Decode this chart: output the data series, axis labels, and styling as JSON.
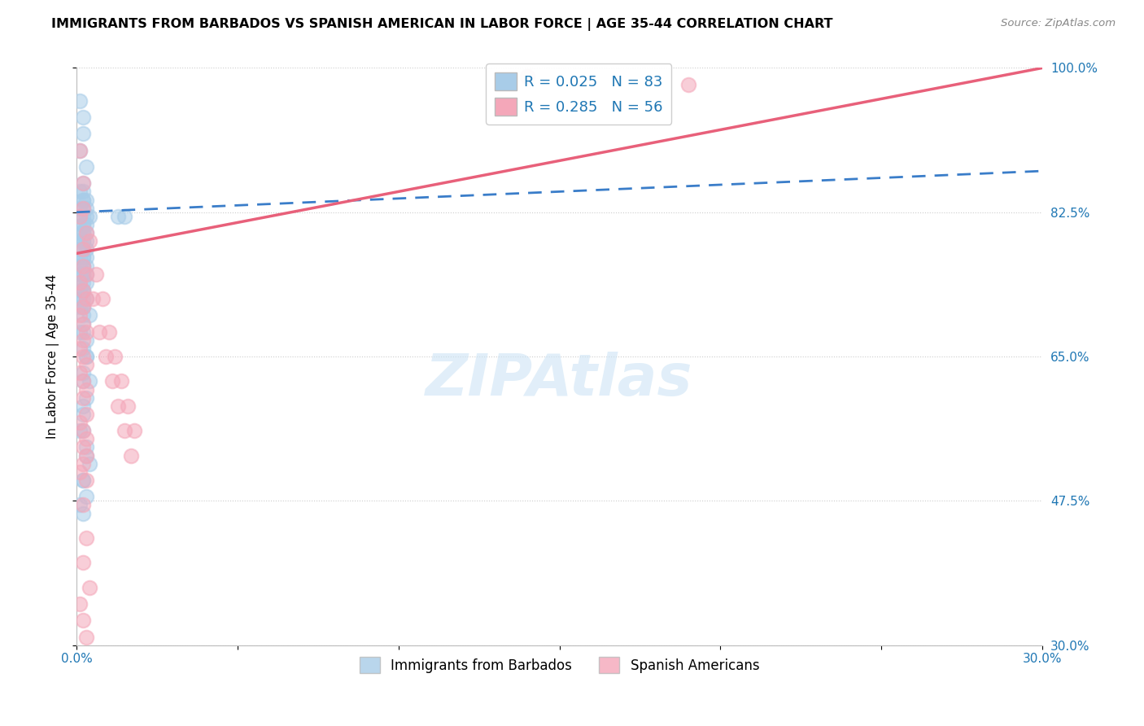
{
  "title": "IMMIGRANTS FROM BARBADOS VS SPANISH AMERICAN IN LABOR FORCE | AGE 35-44 CORRELATION CHART",
  "source": "Source: ZipAtlas.com",
  "ylabel": "In Labor Force | Age 35-44",
  "xlim": [
    0.0,
    0.3
  ],
  "ylim": [
    0.3,
    1.0
  ],
  "xticks": [
    0.0,
    0.05,
    0.1,
    0.15,
    0.2,
    0.25,
    0.3
  ],
  "xticklabels": [
    "0.0%",
    "",
    "",
    "",
    "",
    "",
    "30.0%"
  ],
  "yticks": [
    0.3,
    0.475,
    0.65,
    0.825,
    1.0
  ],
  "yticklabels": [
    "30.0%",
    "47.5%",
    "65.0%",
    "82.5%",
    "100.0%"
  ],
  "blue_color": "#a8cce8",
  "pink_color": "#f4a7b9",
  "blue_line_color": "#3a7dc9",
  "pink_line_color": "#e8607a",
  "R_blue": 0.025,
  "N_blue": 83,
  "R_pink": 0.285,
  "N_pink": 56,
  "watermark": "ZIPAtlas",
  "blue_line_x0": 0.0,
  "blue_line_y0": 0.825,
  "blue_line_x1": 0.3,
  "blue_line_y1": 0.875,
  "blue_line_style": "--",
  "pink_line_x0": 0.0,
  "pink_line_y0": 0.775,
  "pink_line_x1": 0.3,
  "pink_line_y1": 1.0,
  "pink_line_style": "-",
  "blue_scatter_x": [
    0.001,
    0.002,
    0.002,
    0.001,
    0.003,
    0.002,
    0.001,
    0.002,
    0.002,
    0.003,
    0.002,
    0.001,
    0.003,
    0.002,
    0.003,
    0.004,
    0.002,
    0.001,
    0.002,
    0.003,
    0.002,
    0.001,
    0.002,
    0.003,
    0.002,
    0.001,
    0.002,
    0.003,
    0.002,
    0.002,
    0.001,
    0.003,
    0.002,
    0.002,
    0.001,
    0.003,
    0.002,
    0.001,
    0.002,
    0.003,
    0.002,
    0.001,
    0.003,
    0.002,
    0.001,
    0.002,
    0.003,
    0.002,
    0.001,
    0.002,
    0.003,
    0.002,
    0.001,
    0.002,
    0.001,
    0.002,
    0.004,
    0.002,
    0.001,
    0.003,
    0.002,
    0.003,
    0.002,
    0.004,
    0.003,
    0.002,
    0.001,
    0.003,
    0.004,
    0.002,
    0.003,
    0.002,
    0.013,
    0.015,
    0.002,
    0.002,
    0.003,
    0.002,
    0.002,
    0.002,
    0.003,
    0.002,
    0.001
  ],
  "blue_scatter_y": [
    0.96,
    0.94,
    0.92,
    0.9,
    0.88,
    0.86,
    0.85,
    0.85,
    0.84,
    0.84,
    0.84,
    0.83,
    0.83,
    0.83,
    0.82,
    0.82,
    0.82,
    0.82,
    0.81,
    0.81,
    0.81,
    0.8,
    0.8,
    0.8,
    0.8,
    0.79,
    0.79,
    0.79,
    0.79,
    0.78,
    0.78,
    0.78,
    0.77,
    0.77,
    0.77,
    0.77,
    0.76,
    0.76,
    0.76,
    0.76,
    0.75,
    0.75,
    0.75,
    0.75,
    0.74,
    0.74,
    0.74,
    0.73,
    0.73,
    0.73,
    0.72,
    0.72,
    0.72,
    0.71,
    0.71,
    0.7,
    0.7,
    0.69,
    0.68,
    0.67,
    0.66,
    0.65,
    0.63,
    0.62,
    0.6,
    0.58,
    0.56,
    0.54,
    0.52,
    0.5,
    0.48,
    0.46,
    0.82,
    0.82,
    0.71,
    0.68,
    0.65,
    0.62,
    0.59,
    0.56,
    0.53,
    0.5,
    0.47
  ],
  "pink_scatter_x": [
    0.001,
    0.002,
    0.001,
    0.003,
    0.002,
    0.002,
    0.003,
    0.001,
    0.002,
    0.003,
    0.002,
    0.001,
    0.002,
    0.003,
    0.002,
    0.001,
    0.002,
    0.003,
    0.001,
    0.002,
    0.003,
    0.002,
    0.003,
    0.001,
    0.002,
    0.003,
    0.002,
    0.003,
    0.002,
    0.001,
    0.003,
    0.005,
    0.007,
    0.009,
    0.011,
    0.013,
    0.015,
    0.017,
    0.14,
    0.19,
    0.002,
    0.004,
    0.006,
    0.008,
    0.01,
    0.012,
    0.014,
    0.016,
    0.018,
    0.002,
    0.003,
    0.002,
    0.004,
    0.001,
    0.002,
    0.003
  ],
  "pink_scatter_y": [
    0.9,
    0.86,
    0.82,
    0.8,
    0.78,
    0.76,
    0.75,
    0.74,
    0.73,
    0.72,
    0.71,
    0.7,
    0.69,
    0.68,
    0.67,
    0.66,
    0.65,
    0.64,
    0.63,
    0.62,
    0.61,
    0.6,
    0.58,
    0.57,
    0.56,
    0.55,
    0.54,
    0.53,
    0.52,
    0.51,
    0.5,
    0.72,
    0.68,
    0.65,
    0.62,
    0.59,
    0.56,
    0.53,
    0.99,
    0.98,
    0.83,
    0.79,
    0.75,
    0.72,
    0.68,
    0.65,
    0.62,
    0.59,
    0.56,
    0.47,
    0.43,
    0.4,
    0.37,
    0.35,
    0.33,
    0.31
  ]
}
